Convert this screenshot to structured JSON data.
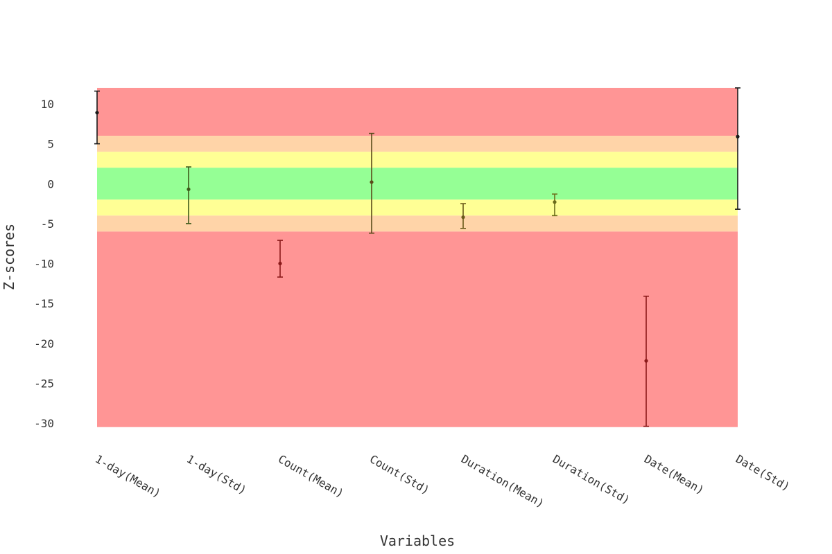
{
  "chart_data": {
    "type": "scatter",
    "title": "",
    "xlabel": "Variables",
    "ylabel": "Z-scores",
    "ylim": [
      -30.5,
      12
    ],
    "yticks": [
      10,
      5,
      0,
      -5,
      -10,
      -15,
      -20,
      -25,
      -30
    ],
    "grid": false,
    "legend": "none",
    "bands": [
      {
        "from": 6,
        "to": 12,
        "color": "#ff9595"
      },
      {
        "from": 4,
        "to": 6,
        "color": "#ffd4a8"
      },
      {
        "from": 2,
        "to": 4,
        "color": "#ffff95"
      },
      {
        "from": -2,
        "to": 2,
        "color": "#95ff95"
      },
      {
        "from": -4,
        "to": -2,
        "color": "#ffff95"
      },
      {
        "from": -6,
        "to": -4,
        "color": "#ffd4a8"
      },
      {
        "from": -30.5,
        "to": -6,
        "color": "#ff9595"
      }
    ],
    "categories": [
      "1-day(Mean)",
      "1-day(Std)",
      "Count(Mean)",
      "Count(Std)",
      "Duration(Mean)",
      "Duration(Std)",
      "Date(Mean)",
      "Date(Std)"
    ],
    "points": [
      {
        "value": 8.9,
        "lower": 5.0,
        "upper": 11.6,
        "color": "#1a1a1a"
      },
      {
        "value": -0.7,
        "lower": -5.0,
        "upper": 2.1,
        "color": "#3d5a1a"
      },
      {
        "value": -10.0,
        "lower": -11.7,
        "upper": -7.1,
        "color": "#8b1a1a"
      },
      {
        "value": 0.2,
        "lower": -6.2,
        "upper": 6.3,
        "color": "#5a4a1a"
      },
      {
        "value": -4.2,
        "lower": -5.6,
        "upper": -2.5,
        "color": "#6b5a1a"
      },
      {
        "value": -2.3,
        "lower": -4.0,
        "upper": -1.3,
        "color": "#6b6b1a"
      },
      {
        "value": -22.2,
        "lower": -30.4,
        "upper": -14.1,
        "color": "#8b1a1a"
      },
      {
        "value": 5.9,
        "lower": -3.2,
        "upper": 12.0,
        "color": "#1a1a1a"
      }
    ]
  }
}
